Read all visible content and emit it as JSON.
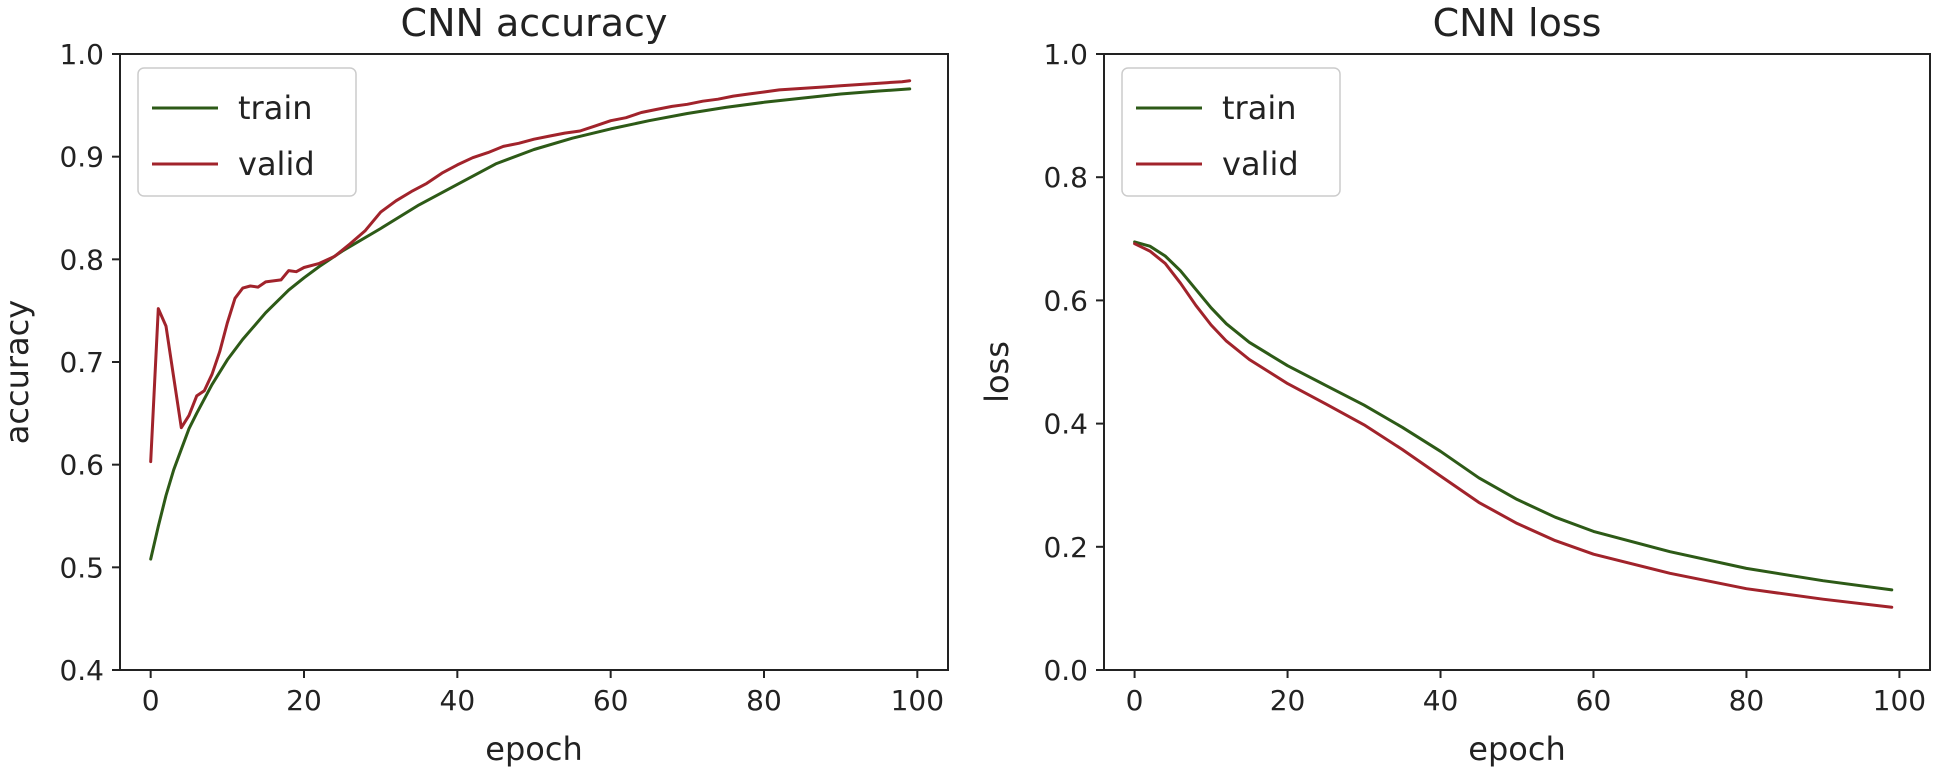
{
  "chart_data": [
    {
      "type": "line",
      "title": "CNN accuracy",
      "xlabel": "epoch",
      "ylabel": "accuracy",
      "xlim": [
        -4,
        104
      ],
      "ylim": [
        0.4,
        1.0
      ],
      "xticks": [
        0,
        20,
        40,
        60,
        80,
        100
      ],
      "yticks": [
        0.4,
        0.5,
        0.6,
        0.7,
        0.8,
        0.9,
        1.0
      ],
      "xtick_labels": [
        "0",
        "20",
        "40",
        "60",
        "80",
        "100"
      ],
      "ytick_labels": [
        "0.4",
        "0.5",
        "0.6",
        "0.7",
        "0.8",
        "0.9",
        "1.0"
      ],
      "grid": false,
      "legend": "top-left",
      "series": [
        {
          "name": "train",
          "color": "#2d5a17",
          "x": [
            0,
            1,
            2,
            3,
            4,
            5,
            6,
            8,
            10,
            12,
            15,
            18,
            20,
            22,
            25,
            30,
            35,
            40,
            45,
            50,
            55,
            60,
            65,
            70,
            75,
            80,
            85,
            90,
            95,
            99
          ],
          "y": [
            0.508,
            0.54,
            0.57,
            0.595,
            0.615,
            0.635,
            0.65,
            0.678,
            0.702,
            0.722,
            0.748,
            0.77,
            0.782,
            0.793,
            0.808,
            0.83,
            0.853,
            0.873,
            0.893,
            0.907,
            0.918,
            0.927,
            0.935,
            0.942,
            0.948,
            0.953,
            0.957,
            0.961,
            0.964,
            0.966
          ]
        },
        {
          "name": "valid",
          "color": "#a1232b",
          "x": [
            0,
            1,
            2,
            3,
            4,
            5,
            6,
            7,
            8,
            9,
            10,
            11,
            12,
            13,
            14,
            15,
            16,
            17,
            18,
            19,
            20,
            22,
            24,
            26,
            28,
            30,
            32,
            34,
            36,
            38,
            40,
            42,
            44,
            46,
            48,
            50,
            52,
            54,
            56,
            58,
            60,
            62,
            64,
            66,
            68,
            70,
            72,
            74,
            76,
            78,
            80,
            82,
            84,
            86,
            88,
            90,
            92,
            94,
            96,
            98,
            99
          ],
          "y": [
            0.603,
            0.752,
            0.735,
            0.685,
            0.636,
            0.648,
            0.667,
            0.672,
            0.688,
            0.71,
            0.738,
            0.762,
            0.772,
            0.774,
            0.773,
            0.778,
            0.779,
            0.78,
            0.789,
            0.788,
            0.792,
            0.796,
            0.803,
            0.815,
            0.828,
            0.846,
            0.857,
            0.866,
            0.874,
            0.884,
            0.892,
            0.899,
            0.904,
            0.91,
            0.913,
            0.917,
            0.92,
            0.923,
            0.925,
            0.93,
            0.935,
            0.938,
            0.943,
            0.946,
            0.949,
            0.951,
            0.954,
            0.956,
            0.959,
            0.961,
            0.963,
            0.965,
            0.966,
            0.967,
            0.968,
            0.969,
            0.97,
            0.971,
            0.972,
            0.973,
            0.974
          ]
        }
      ]
    },
    {
      "type": "line",
      "title": "CNN loss",
      "xlabel": "epoch",
      "ylabel": "loss",
      "xlim": [
        -4,
        104
      ],
      "ylim": [
        0.0,
        1.0
      ],
      "xticks": [
        0,
        20,
        40,
        60,
        80,
        100
      ],
      "yticks": [
        0.0,
        0.2,
        0.4,
        0.6,
        0.8,
        1.0
      ],
      "xtick_labels": [
        "0",
        "20",
        "40",
        "60",
        "80",
        "100"
      ],
      "ytick_labels": [
        "0.0",
        "0.2",
        "0.4",
        "0.6",
        "0.8",
        "1.0"
      ],
      "grid": false,
      "legend": "top-left",
      "series": [
        {
          "name": "train",
          "color": "#2d5a17",
          "x": [
            0,
            2,
            4,
            6,
            8,
            10,
            12,
            15,
            20,
            25,
            30,
            35,
            40,
            45,
            50,
            55,
            60,
            70,
            80,
            90,
            99
          ],
          "y": [
            0.695,
            0.688,
            0.672,
            0.648,
            0.618,
            0.588,
            0.562,
            0.532,
            0.494,
            0.462,
            0.43,
            0.394,
            0.355,
            0.312,
            0.277,
            0.248,
            0.225,
            0.192,
            0.165,
            0.145,
            0.13
          ]
        },
        {
          "name": "valid",
          "color": "#a1232b",
          "x": [
            0,
            2,
            4,
            6,
            8,
            10,
            12,
            15,
            20,
            25,
            30,
            35,
            40,
            45,
            50,
            55,
            60,
            70,
            80,
            90,
            99
          ],
          "y": [
            0.692,
            0.68,
            0.66,
            0.628,
            0.592,
            0.56,
            0.534,
            0.504,
            0.465,
            0.432,
            0.398,
            0.358,
            0.315,
            0.272,
            0.238,
            0.21,
            0.188,
            0.157,
            0.132,
            0.115,
            0.102
          ]
        }
      ]
    }
  ]
}
